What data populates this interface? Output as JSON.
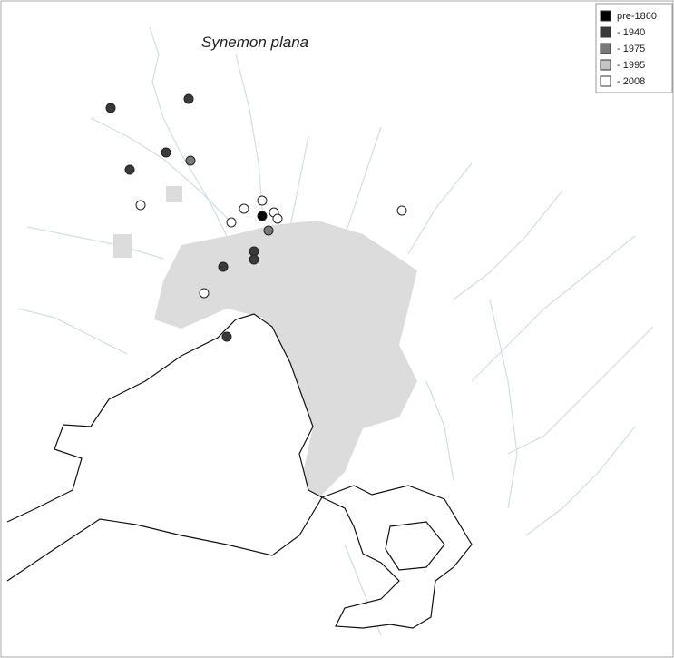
{
  "title": "Synemon plana",
  "legend": {
    "items": [
      {
        "label": "pre-1860",
        "color": "#000000"
      },
      {
        "label": "- 1940",
        "color": "#3a3a3a"
      },
      {
        "label": "- 1975",
        "color": "#7a7a7a"
      },
      {
        "label": "- 1995",
        "color": "#c4c4c4"
      },
      {
        "label": "- 2008",
        "color": "#ffffff"
      }
    ]
  }
}
